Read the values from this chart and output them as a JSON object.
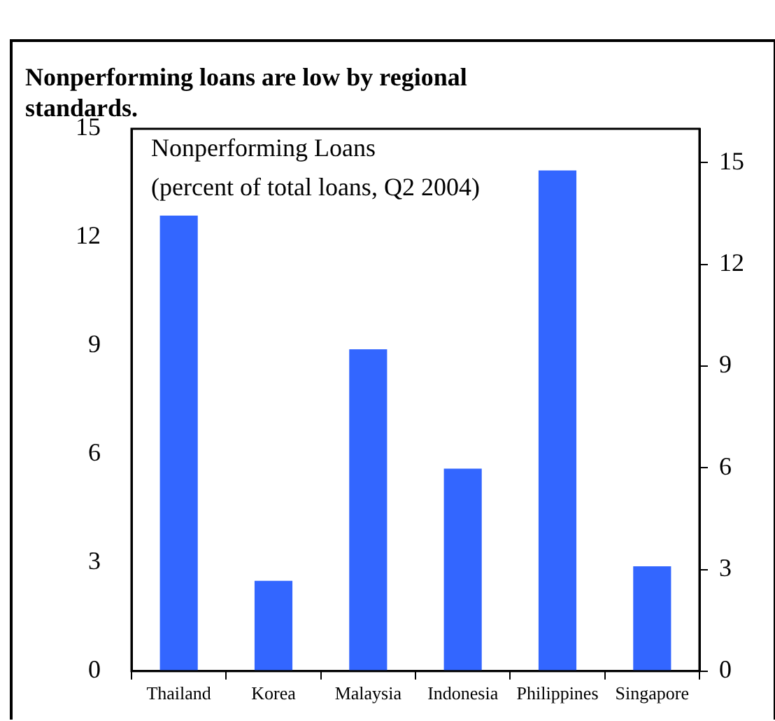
{
  "chart_data": {
    "type": "bar",
    "title": "Nonperforming loans are low by regional standards.",
    "subtitle": "Nonperforming Loans\n(percent of total loans, Q2 2004)",
    "categories": [
      "Thailand",
      "Korea",
      "Malaysia",
      "Indonesia",
      "Philippines",
      "Singapore"
    ],
    "values": [
      12.6,
      2.5,
      8.9,
      5.6,
      13.85,
      2.9
    ],
    "color": "#3366ff",
    "ylim": [
      0,
      15
    ],
    "yticks": [
      0,
      3,
      6,
      9,
      12,
      15
    ],
    "y2lim": [
      0,
      16
    ],
    "y2ticks": [
      0,
      3,
      6,
      9,
      12,
      15
    ]
  }
}
